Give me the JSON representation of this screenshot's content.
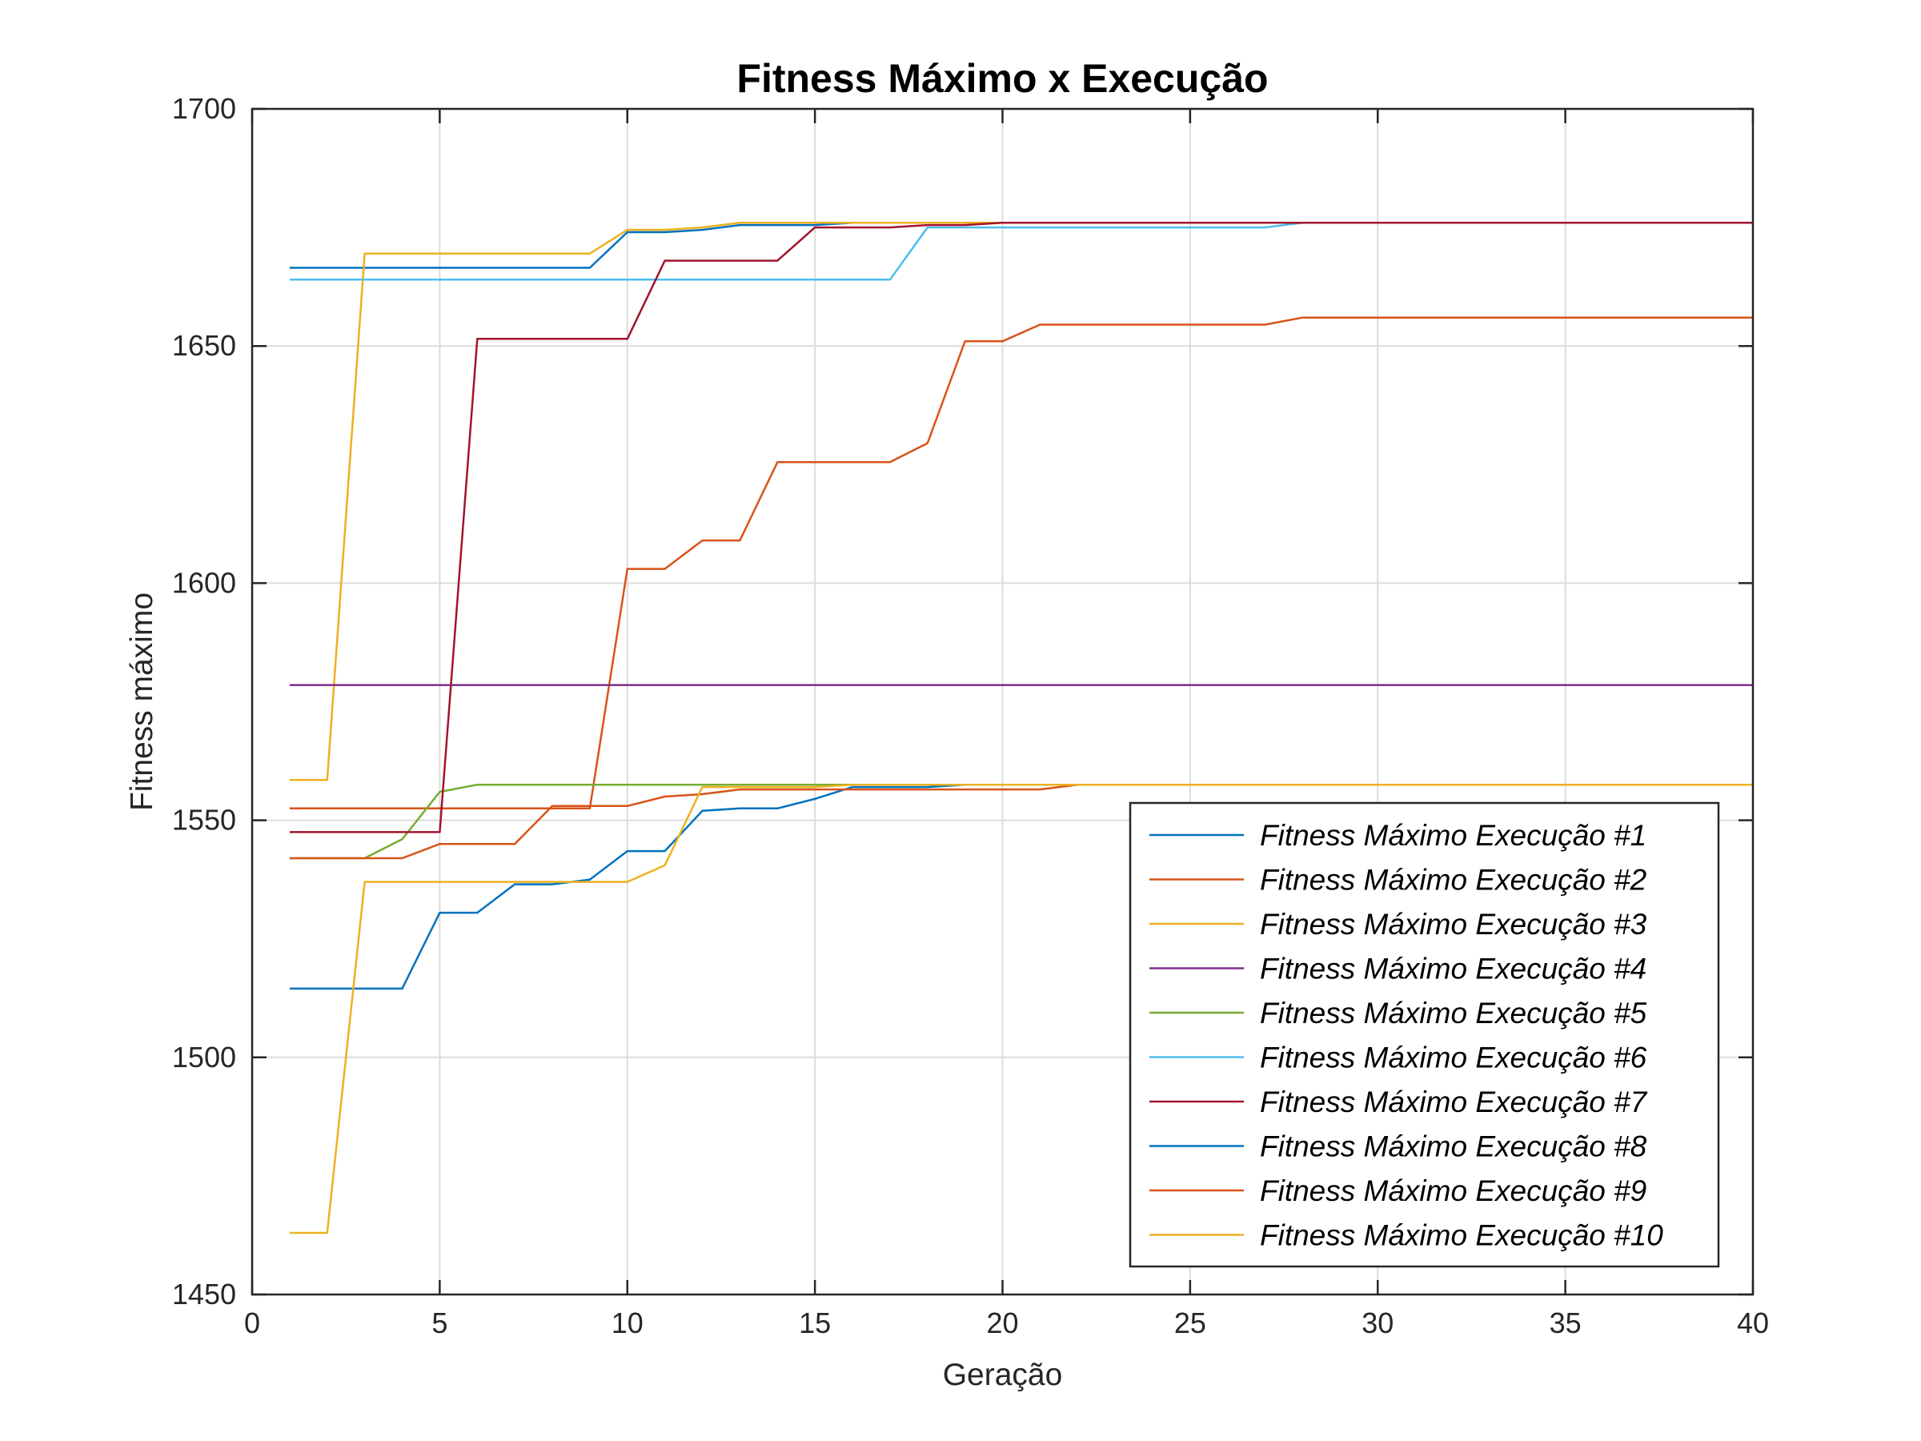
{
  "chart_data": {
    "type": "line",
    "title": "Fitness Máximo x Execução",
    "xlabel": "Geração",
    "ylabel": "Fitness máximo",
    "xlim": [
      0,
      40
    ],
    "ylim": [
      1450,
      1700
    ],
    "xticks": [
      0,
      5,
      10,
      15,
      20,
      25,
      30,
      35,
      40
    ],
    "yticks": [
      1450,
      1500,
      1550,
      1600,
      1650,
      1700
    ],
    "grid": true,
    "legend_position": "bottom-right",
    "x": [
      1,
      2,
      3,
      4,
      5,
      6,
      7,
      8,
      9,
      10,
      11,
      12,
      13,
      14,
      15,
      16,
      17,
      18,
      19,
      20,
      21,
      22,
      23,
      24,
      25,
      26,
      27,
      28,
      29,
      30,
      31,
      32,
      33,
      34,
      35,
      36,
      37,
      38,
      39,
      40
    ],
    "series": [
      {
        "name": "Fitness Máximo Execução #1",
        "color": "#0072BD",
        "values": [
          1666.5,
          1666.5,
          1666.5,
          1666.5,
          1666.5,
          1666.5,
          1666.5,
          1666.5,
          1666.5,
          1674,
          1674,
          1674.5,
          1675.5,
          1675.5,
          1675.5,
          1676,
          1676,
          1676,
          1676,
          1676,
          1676,
          1676,
          1676,
          1676,
          1676,
          1676,
          1676,
          1676,
          1676,
          1676,
          1676,
          1676,
          1676,
          1676,
          1676,
          1676,
          1676,
          1676,
          1676,
          1676
        ]
      },
      {
        "name": "Fitness Máximo Execução #2",
        "color": "#D95319",
        "values": [
          1552.5,
          1552.5,
          1552.5,
          1552.5,
          1552.5,
          1552.5,
          1552.5,
          1552.5,
          1552.5,
          1603,
          1603,
          1609,
          1609,
          1625.5,
          1625.5,
          1625.5,
          1625.5,
          1629.5,
          1651,
          1651,
          1654.5,
          1654.5,
          1654.5,
          1654.5,
          1654.5,
          1654.5,
          1654.5,
          1656,
          1656,
          1656,
          1656,
          1656,
          1656,
          1656,
          1656,
          1656,
          1656,
          1656,
          1656,
          1656
        ]
      },
      {
        "name": "Fitness Máximo Execução #3",
        "color": "#EDB120",
        "values": [
          1558.5,
          1558.5,
          1669.5,
          1669.5,
          1669.5,
          1669.5,
          1669.5,
          1669.5,
          1669.5,
          1674.5,
          1674.5,
          1675,
          1676,
          1676,
          1676,
          1676,
          1676,
          1676,
          1676,
          1676,
          1676,
          1676,
          1676,
          1676,
          1676,
          1676,
          1676,
          1676,
          1676,
          1676,
          1676,
          1676,
          1676,
          1676,
          1676,
          1676,
          1676,
          1676,
          1676,
          1676
        ]
      },
      {
        "name": "Fitness Máximo Execução #4",
        "color": "#7E2F8E",
        "values": [
          1578.5,
          1578.5,
          1578.5,
          1578.5,
          1578.5,
          1578.5,
          1578.5,
          1578.5,
          1578.5,
          1578.5,
          1578.5,
          1578.5,
          1578.5,
          1578.5,
          1578.5,
          1578.5,
          1578.5,
          1578.5,
          1578.5,
          1578.5,
          1578.5,
          1578.5,
          1578.5,
          1578.5,
          1578.5,
          1578.5,
          1578.5,
          1578.5,
          1578.5,
          1578.5,
          1578.5,
          1578.5,
          1578.5,
          1578.5,
          1578.5,
          1578.5,
          1578.5,
          1578.5,
          1578.5,
          1578.5
        ]
      },
      {
        "name": "Fitness Máximo Execução #5",
        "color": "#77AC30",
        "values": [
          1542,
          1542,
          1542,
          1546,
          1556,
          1557.5,
          1557.5,
          1557.5,
          1557.5,
          1557.5,
          1557.5,
          1557.5,
          1557.5,
          1557.5,
          1557.5,
          1557.5,
          1557.5,
          1557.5,
          1557.5,
          1557.5,
          1557.5,
          1557.5,
          1557.5,
          1557.5,
          1557.5,
          1557.5,
          1557.5,
          1557.5,
          1557.5,
          1557.5,
          1557.5,
          1557.5,
          1557.5,
          1557.5,
          1557.5,
          1557.5,
          1557.5,
          1557.5,
          1557.5,
          1557.5
        ]
      },
      {
        "name": "Fitness Máximo Execução #6",
        "color": "#4DBEEE",
        "values": [
          1664,
          1664,
          1664,
          1664,
          1664,
          1664,
          1664,
          1664,
          1664,
          1664,
          1664,
          1664,
          1664,
          1664,
          1664,
          1664,
          1664,
          1675,
          1675,
          1675,
          1675,
          1675,
          1675,
          1675,
          1675,
          1675,
          1675,
          1676,
          1676,
          1676,
          1676,
          1676,
          1676,
          1676,
          1676,
          1676,
          1676,
          1676,
          1676,
          1676
        ]
      },
      {
        "name": "Fitness Máximo Execução #7",
        "color": "#A2142F",
        "values": [
          1547.5,
          1547.5,
          1547.5,
          1547.5,
          1547.5,
          1651.5,
          1651.5,
          1651.5,
          1651.5,
          1651.5,
          1668,
          1668,
          1668,
          1668,
          1675,
          1675,
          1675,
          1675.5,
          1675.5,
          1676,
          1676,
          1676,
          1676,
          1676,
          1676,
          1676,
          1676,
          1676,
          1676,
          1676,
          1676,
          1676,
          1676,
          1676,
          1676,
          1676,
          1676,
          1676,
          1676,
          1676
        ]
      },
      {
        "name": "Fitness Máximo Execução #8",
        "color": "#0072BD",
        "values": [
          1514.5,
          1514.5,
          1514.5,
          1514.5,
          1530.5,
          1530.5,
          1536.5,
          1536.5,
          1537.5,
          1543.5,
          1543.5,
          1552,
          1552.5,
          1552.5,
          1554.5,
          1557,
          1557,
          1557,
          1557.5,
          1557.5,
          1557.5,
          1557.5,
          1557.5,
          1557.5,
          1557.5,
          1557.5,
          1557.5,
          1557.5,
          1557.5,
          1557.5,
          1557.5,
          1557.5,
          1557.5,
          1557.5,
          1557.5,
          1557.5,
          1557.5,
          1557.5,
          1557.5,
          1557.5
        ]
      },
      {
        "name": "Fitness Máximo Execução #9",
        "color": "#D95319",
        "values": [
          1542,
          1542,
          1542,
          1542,
          1545,
          1545,
          1545,
          1553,
          1553,
          1553,
          1555,
          1555.5,
          1556.5,
          1556.5,
          1556.5,
          1556.5,
          1556.5,
          1556.5,
          1556.5,
          1556.5,
          1556.5,
          1557.5,
          1557.5,
          1557.5,
          1557.5,
          1557.5,
          1557.5,
          1557.5,
          1557.5,
          1557.5,
          1557.5,
          1557.5,
          1557.5,
          1557.5,
          1557.5,
          1557.5,
          1557.5,
          1557.5,
          1557.5,
          1557.5
        ]
      },
      {
        "name": "Fitness Máximo Execução #10",
        "color": "#EDB120",
        "values": [
          1463,
          1463,
          1537,
          1537,
          1537,
          1537,
          1537,
          1537,
          1537,
          1537,
          1540.5,
          1557,
          1557,
          1557,
          1557,
          1557.5,
          1557.5,
          1557.5,
          1557.5,
          1557.5,
          1557.5,
          1557.5,
          1557.5,
          1557.5,
          1557.5,
          1557.5,
          1557.5,
          1557.5,
          1557.5,
          1557.5,
          1557.5,
          1557.5,
          1557.5,
          1557.5,
          1557.5,
          1557.5,
          1557.5,
          1557.5,
          1557.5,
          1557.5
        ]
      }
    ]
  }
}
